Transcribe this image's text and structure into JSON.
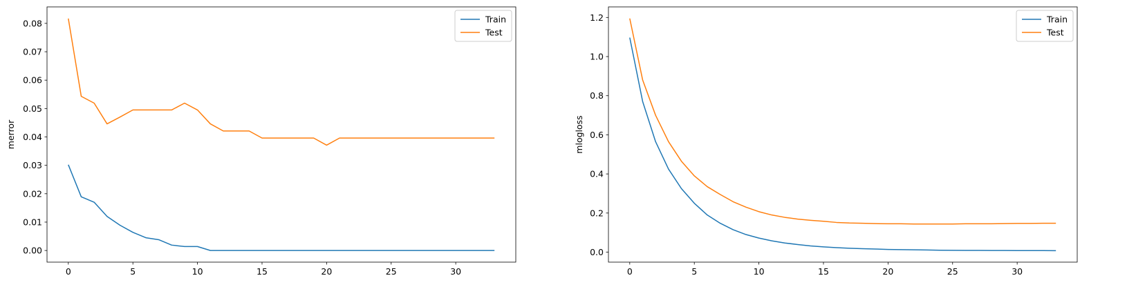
{
  "chart_data": [
    {
      "type": "line",
      "title": "",
      "xlabel": "",
      "ylabel": "merror",
      "xlim": [
        -1.65,
        34.65
      ],
      "ylim": [
        -0.0041,
        0.0858
      ],
      "xticks": [
        0,
        5,
        10,
        15,
        20,
        25,
        30
      ],
      "xtick_labels": [
        "0",
        "5",
        "10",
        "15",
        "20",
        "25",
        "30"
      ],
      "yticks": [
        0,
        0.01,
        0.02,
        0.03,
        0.04,
        0.05,
        0.06,
        0.07,
        0.08
      ],
      "ytick_labels": [
        "0.00",
        "0.01",
        "0.02",
        "0.03",
        "0.04",
        "0.05",
        "0.06",
        "0.07",
        "0.08"
      ],
      "grid": false,
      "legend_position": "top-right",
      "x": [
        0,
        1,
        2,
        3,
        4,
        5,
        6,
        7,
        8,
        9,
        10,
        11,
        12,
        13,
        14,
        15,
        16,
        17,
        18,
        19,
        20,
        21,
        22,
        23,
        24,
        25,
        26,
        27,
        28,
        29,
        30,
        31,
        32,
        33
      ],
      "series": [
        {
          "name": "Train",
          "color": "#1f77b4",
          "values": [
            0.0302,
            0.0189,
            0.017,
            0.012,
            0.0089,
            0.0064,
            0.0045,
            0.0038,
            0.0019,
            0.0014,
            0.0014,
            0,
            0,
            0,
            0,
            0,
            0,
            0,
            0,
            0,
            0,
            0,
            0,
            0,
            0,
            0,
            0,
            0,
            0,
            0,
            0,
            0,
            0,
            0
          ]
        },
        {
          "name": "Test",
          "color": "#ff7f0e",
          "values": [
            0.0817,
            0.0543,
            0.0519,
            0.0446,
            0.047,
            0.0495,
            0.0495,
            0.0495,
            0.0495,
            0.0519,
            0.0495,
            0.0446,
            0.0421,
            0.0421,
            0.0421,
            0.0396,
            0.0396,
            0.0396,
            0.0396,
            0.0396,
            0.0371,
            0.0396,
            0.0396,
            0.0396,
            0.0396,
            0.0396,
            0.0396,
            0.0396,
            0.0396,
            0.0396,
            0.0396,
            0.0396,
            0.0396,
            0.0396
          ]
        }
      ]
    },
    {
      "type": "line",
      "title": "",
      "xlabel": "",
      "ylabel": "mlogloss",
      "xlim": [
        -1.65,
        34.65
      ],
      "ylim": [
        -0.051,
        1.254
      ],
      "xticks": [
        0,
        5,
        10,
        15,
        20,
        25,
        30
      ],
      "xtick_labels": [
        "0",
        "5",
        "10",
        "15",
        "20",
        "25",
        "30"
      ],
      "yticks": [
        0,
        0.2,
        0.4,
        0.6,
        0.8,
        1.0,
        1.2
      ],
      "ytick_labels": [
        "0.0",
        "0.2",
        "0.4",
        "0.6",
        "0.8",
        "1.0",
        "1.2"
      ],
      "grid": false,
      "legend_position": "top-right",
      "x": [
        0,
        1,
        2,
        3,
        4,
        5,
        6,
        7,
        8,
        9,
        10,
        11,
        12,
        13,
        14,
        15,
        16,
        17,
        18,
        19,
        20,
        21,
        22,
        23,
        24,
        25,
        26,
        27,
        28,
        29,
        30,
        31,
        32,
        33
      ],
      "series": [
        {
          "name": "Train",
          "color": "#1f77b4",
          "values": [
            1.097,
            0.77,
            0.565,
            0.425,
            0.325,
            0.25,
            0.19,
            0.148,
            0.115,
            0.09,
            0.072,
            0.058,
            0.047,
            0.039,
            0.032,
            0.027,
            0.023,
            0.02,
            0.018,
            0.016,
            0.014,
            0.013,
            0.012,
            0.011,
            0.01,
            0.0095,
            0.009,
            0.0088,
            0.0086,
            0.0084,
            0.0082,
            0.008,
            0.0079,
            0.0078
          ]
        },
        {
          "name": "Test",
          "color": "#ff7f0e",
          "values": [
            1.195,
            0.88,
            0.7,
            0.565,
            0.465,
            0.39,
            0.335,
            0.295,
            0.258,
            0.23,
            0.207,
            0.19,
            0.178,
            0.169,
            0.163,
            0.158,
            0.152,
            0.149,
            0.148,
            0.146,
            0.145,
            0.145,
            0.144,
            0.144,
            0.144,
            0.144,
            0.145,
            0.145,
            0.145,
            0.146,
            0.147,
            0.147,
            0.148,
            0.148
          ]
        }
      ]
    }
  ]
}
